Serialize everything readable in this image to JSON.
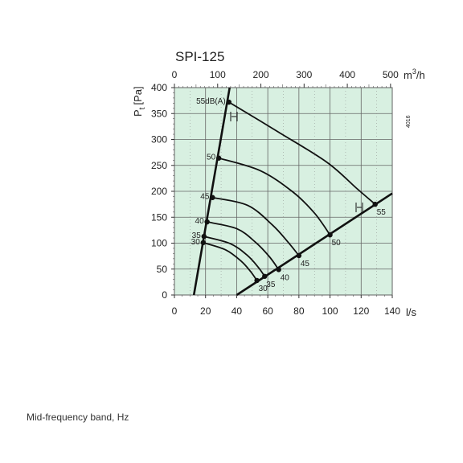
{
  "chart_data": {
    "type": "line",
    "title": "SPI-125",
    "code": "4016",
    "ylabel": "P",
    "ylabel_sub": "t",
    "ylabel_unit": "[Pa]",
    "xlabel_bottom": "l/s",
    "xlabel_top_unit_base": "m",
    "xlabel_top_unit_exp": "3",
    "xlabel_top_unit_tail": "/h",
    "xlim": [
      0,
      140
    ],
    "ylim": [
      0,
      400
    ],
    "top_axis_scale": 3.6,
    "x_ticks": [
      "0",
      "20",
      "40",
      "60",
      "80",
      "100",
      "120",
      "140"
    ],
    "x_tick_values": [
      0,
      20,
      40,
      60,
      80,
      100,
      120,
      140
    ],
    "top_ticks": [
      "0",
      "100",
      "200",
      "300",
      "400",
      "500"
    ],
    "top_tick_values": [
      0,
      100,
      200,
      300,
      400,
      500
    ],
    "y_ticks": [
      "0",
      "50",
      "100",
      "150",
      "200",
      "250",
      "300",
      "350",
      "400"
    ],
    "y_tick_values": [
      0,
      50,
      100,
      150,
      200,
      250,
      300,
      350,
      400
    ],
    "grid": true,
    "background_color": "#d8f0e1",
    "line_color": "#111111",
    "boundary_lines": [
      {
        "points": [
          [
            12.5,
            0
          ],
          [
            35.5,
            400
          ]
        ]
      },
      {
        "points": [
          [
            40,
            0
          ],
          [
            140,
            196
          ]
        ]
      }
    ],
    "series": [
      {
        "label_top": "30",
        "label_bottom": "30",
        "points": [
          [
            18.5,
            101
          ],
          [
            33,
            87
          ],
          [
            43,
            65
          ],
          [
            49,
            45
          ],
          [
            53,
            28
          ]
        ]
      },
      {
        "label_top": "35",
        "label_bottom": "35",
        "points": [
          [
            19,
            113
          ],
          [
            36,
            99
          ],
          [
            47,
            76
          ],
          [
            54,
            53
          ],
          [
            58,
            36
          ]
        ]
      },
      {
        "label_top": "40",
        "label_bottom": "40",
        "points": [
          [
            21,
            141
          ],
          [
            40,
            128
          ],
          [
            52,
            102
          ],
          [
            61,
            74
          ],
          [
            67,
            49
          ]
        ]
      },
      {
        "label_top": "45",
        "label_bottom": "45",
        "points": [
          [
            24.5,
            188
          ],
          [
            47,
            173
          ],
          [
            63,
            135
          ],
          [
            73,
            102
          ],
          [
            80,
            76
          ]
        ]
      },
      {
        "label_top": "50",
        "label_bottom": "50",
        "points": [
          [
            28.5,
            264
          ],
          [
            55,
            240
          ],
          [
            76,
            199
          ],
          [
            90,
            158
          ],
          [
            100,
            116
          ]
        ]
      },
      {
        "label_top": "55dB(A)",
        "label_bottom": "55",
        "points": [
          [
            35,
            372
          ],
          [
            67,
            314
          ],
          [
            98,
            256
          ],
          [
            117,
            206
          ],
          [
            129,
            175
          ]
        ]
      }
    ]
  },
  "caption": "Mid-frequency band, Hz"
}
